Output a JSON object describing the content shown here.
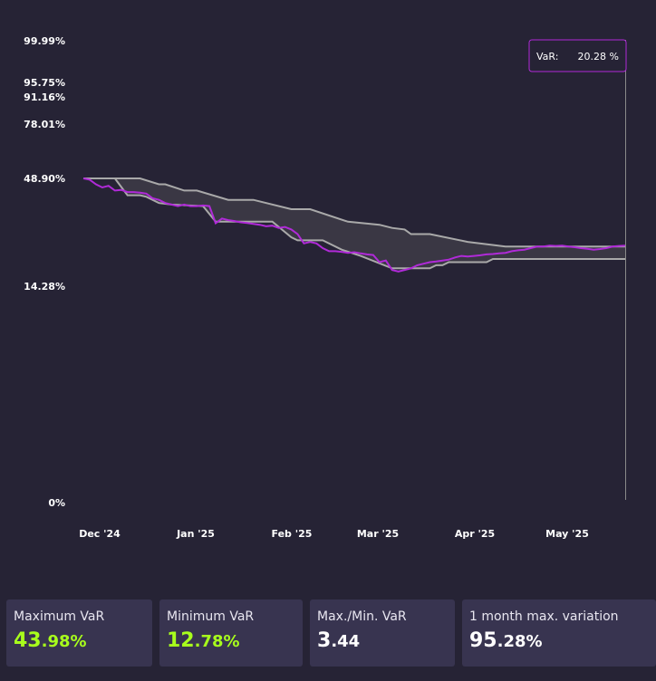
{
  "colors": {
    "background": "#262335",
    "card": "#383450",
    "band_fill": "#3a3744",
    "band_line": "#a9a9a9",
    "series": "#b02ad8",
    "tooltip_border": "#b02ad8",
    "accent": "#a8ff1c"
  },
  "chart_data": {
    "type": "line",
    "y_axis": {
      "scale": "non-linear (probability-style)",
      "ticks": [
        "99.99%",
        "95.75%",
        "91.16%",
        "78.01%",
        "48.90%",
        "14.28%",
        "0%"
      ]
    },
    "x_axis": {
      "ticks": [
        "Dec '24",
        "Jan '25",
        "Feb '25",
        "Mar '25",
        "Apr '25",
        "May '25"
      ]
    },
    "band": {
      "upper": [
        [
          0,
          48.9
        ],
        [
          9,
          48.9
        ],
        [
          12,
          47
        ],
        [
          13,
          47
        ],
        [
          16,
          45
        ],
        [
          18,
          45
        ],
        [
          23,
          42
        ],
        [
          27,
          42
        ],
        [
          33,
          39
        ],
        [
          36,
          39
        ],
        [
          42,
          35
        ],
        [
          47,
          34
        ],
        [
          49,
          33
        ],
        [
          51,
          32.5
        ],
        [
          52,
          31
        ],
        [
          55,
          31
        ],
        [
          61,
          28.5
        ],
        [
          67,
          27
        ],
        [
          75,
          27
        ],
        [
          86,
          27
        ]
      ],
      "lower": [
        [
          0,
          48.9
        ],
        [
          5,
          48.9
        ],
        [
          7,
          43.5
        ],
        [
          9,
          43.5
        ],
        [
          10,
          43
        ],
        [
          12,
          41
        ],
        [
          14,
          40.5
        ],
        [
          19,
          40
        ],
        [
          21,
          35
        ],
        [
          30,
          35
        ],
        [
          33,
          30
        ],
        [
          34,
          29
        ],
        [
          38,
          29
        ],
        [
          41,
          26
        ],
        [
          44,
          24
        ],
        [
          49,
          20
        ],
        [
          55,
          20
        ],
        [
          56,
          21
        ],
        [
          57,
          21
        ],
        [
          58,
          22
        ],
        [
          64,
          22
        ],
        [
          65,
          23
        ],
        [
          75,
          23
        ],
        [
          86,
          23
        ]
      ]
    },
    "series": [
      {
        "name": "VaR",
        "points": [
          [
            0,
            48.9
          ],
          [
            1,
            48.5
          ],
          [
            2,
            47
          ],
          [
            3,
            46
          ],
          [
            4,
            46.5
          ],
          [
            5,
            45
          ],
          [
            6,
            45.2
          ],
          [
            7,
            44.5
          ],
          [
            8,
            44.5
          ],
          [
            9,
            44.3
          ],
          [
            10,
            44
          ],
          [
            11,
            42.5
          ],
          [
            12,
            42
          ],
          [
            13,
            41
          ],
          [
            14,
            40.5
          ],
          [
            15,
            40
          ],
          [
            16,
            40.5
          ],
          [
            17,
            40
          ],
          [
            18,
            40
          ],
          [
            19,
            40.2
          ],
          [
            20,
            40
          ],
          [
            21,
            34.5
          ],
          [
            22,
            36
          ],
          [
            23,
            35.5
          ],
          [
            24,
            35.2
          ],
          [
            25,
            34.8
          ],
          [
            26,
            34.6
          ],
          [
            27,
            34.3
          ],
          [
            28,
            34
          ],
          [
            29,
            33.5
          ],
          [
            30,
            33.7
          ],
          [
            31,
            33
          ],
          [
            32,
            33.3
          ],
          [
            33,
            32.5
          ],
          [
            34,
            31
          ],
          [
            35,
            28
          ],
          [
            36,
            28.5
          ],
          [
            37,
            28
          ],
          [
            38,
            26.5
          ],
          [
            39,
            25.5
          ],
          [
            40,
            25.5
          ],
          [
            41,
            25.3
          ],
          [
            42,
            25
          ],
          [
            43,
            25.2
          ],
          [
            44,
            24.8
          ],
          [
            45,
            24.5
          ],
          [
            46,
            24.3
          ],
          [
            47,
            22
          ],
          [
            48,
            22.5
          ],
          [
            49,
            19.5
          ],
          [
            50,
            19
          ],
          [
            51,
            19.5
          ],
          [
            52,
            20
          ],
          [
            53,
            21
          ],
          [
            54,
            21.5
          ],
          [
            55,
            22
          ],
          [
            56,
            22.2
          ],
          [
            57,
            22.5
          ],
          [
            58,
            22.8
          ],
          [
            59,
            23.5
          ],
          [
            60,
            24
          ],
          [
            61,
            23.8
          ],
          [
            62,
            24
          ],
          [
            63,
            24.2
          ],
          [
            64,
            24.5
          ],
          [
            65,
            24.6
          ],
          [
            66,
            24.8
          ],
          [
            67,
            25
          ],
          [
            68,
            25.5
          ],
          [
            69,
            25.8
          ],
          [
            70,
            26
          ],
          [
            71,
            26.5
          ],
          [
            72,
            27
          ],
          [
            73,
            27
          ],
          [
            74,
            27.3
          ],
          [
            75,
            27.2
          ],
          [
            76,
            27.3
          ],
          [
            77,
            27
          ],
          [
            78,
            26.8
          ],
          [
            79,
            26.5
          ],
          [
            80,
            26.3
          ],
          [
            81,
            26
          ],
          [
            82,
            26.2
          ],
          [
            83,
            26.5
          ],
          [
            84,
            27
          ],
          [
            85,
            27.2
          ],
          [
            86,
            27.3
          ]
        ]
      }
    ],
    "tooltip": {
      "label": "VaR:",
      "value": "20.28 %"
    }
  },
  "stats": [
    {
      "label": "Maximum VaR",
      "value_int": "43",
      "value_dec": ".98%",
      "highlight": true
    },
    {
      "label": "Minimum VaR",
      "value_int": "12",
      "value_dec": ".78%",
      "highlight": true
    },
    {
      "label": "Max./Min. VaR",
      "value_int": "3",
      "value_dec": ".44",
      "highlight": false
    },
    {
      "label": "1 month max. variation",
      "value_int": "95",
      "value_dec": ".28%",
      "highlight": false
    }
  ]
}
